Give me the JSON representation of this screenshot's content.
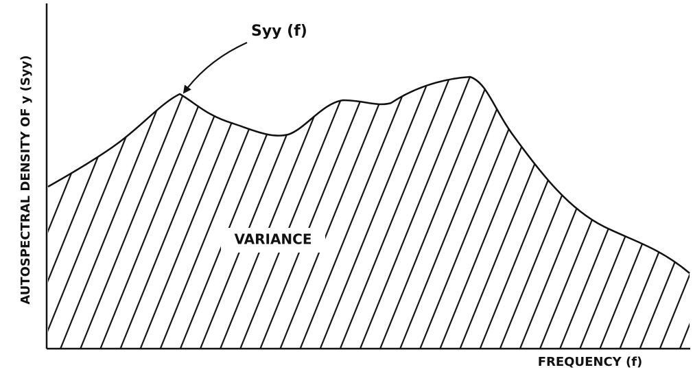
{
  "annotation": "Syy (f)",
  "region_label": "VARIANCE",
  "y_axis_label": "AUTOSPECTRAL DENSITY OF y (Syy)",
  "x_axis_label": "FREQUENCY (f)"
}
